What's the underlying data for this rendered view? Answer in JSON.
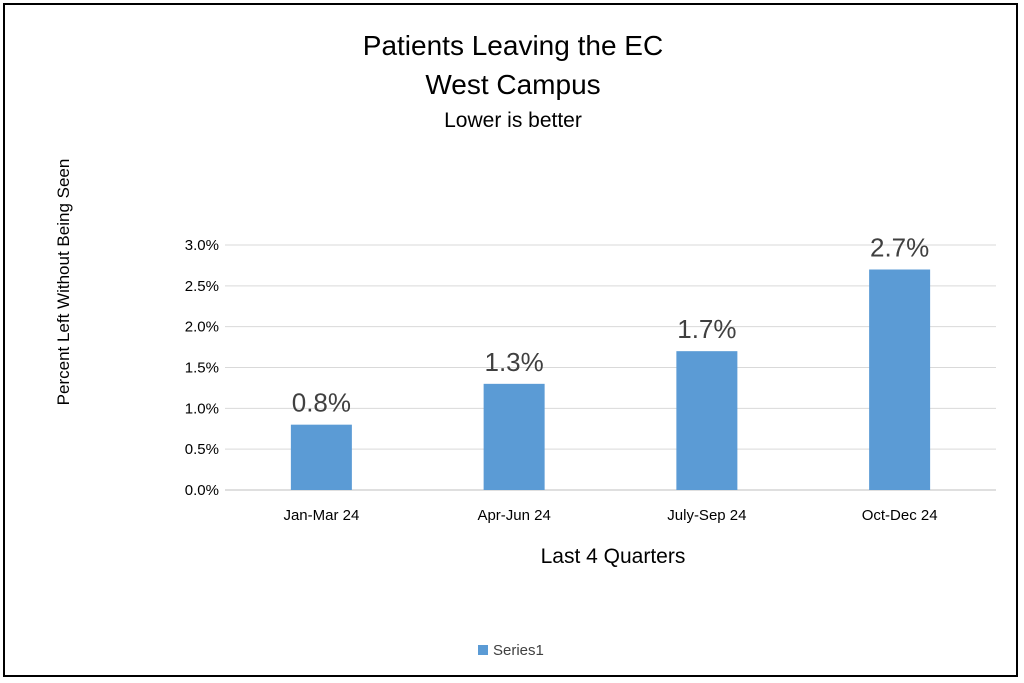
{
  "chart_data": {
    "type": "bar",
    "title": "Patients Leaving the EC",
    "subtitle": "West Campus",
    "note": "Lower is better",
    "ylabel": "Percent Left  Without Being Seen",
    "xlabel": "Last 4 Quarters",
    "categories": [
      "Jan-Mar 24",
      "Apr-Jun 24",
      "July-Sep 24",
      "Oct-Dec 24"
    ],
    "series": [
      {
        "name": "Series1",
        "values": [
          0.8,
          1.3,
          1.7,
          2.7
        ],
        "data_labels": [
          "0.8%",
          "1.3%",
          "1.7%",
          "2.7%"
        ],
        "color": "#5B9BD5"
      }
    ],
    "ylim": [
      0,
      3.0
    ],
    "yticks": [
      0.0,
      0.5,
      1.0,
      1.5,
      2.0,
      2.5,
      3.0
    ],
    "ytick_labels": [
      "0.0%",
      "0.5%",
      "1.0%",
      "1.5%",
      "2.0%",
      "2.5%",
      "3.0%"
    ],
    "grid": true,
    "legend": "bottom"
  }
}
